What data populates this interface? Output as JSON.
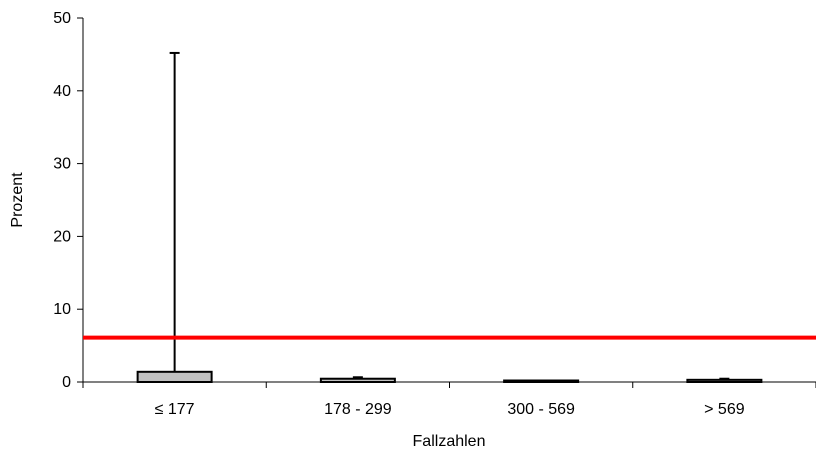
{
  "chart_data": {
    "type": "box",
    "title": "",
    "xlabel": "Fallzahlen",
    "ylabel": "Prozent",
    "categories": [
      "≤ 177",
      "178 - 299",
      "300 - 569",
      "> 569"
    ],
    "ylim": [
      0,
      50
    ],
    "yticks": [
      "0",
      "10",
      "20",
      "30",
      "40",
      "50"
    ],
    "grid": false,
    "boxes": [
      {
        "category": "≤ 177",
        "min": 0,
        "q1": 0,
        "median": 0,
        "q3": 1.4,
        "max": 45.2
      },
      {
        "category": "178 - 299",
        "min": 0,
        "q1": 0,
        "median": 0,
        "q3": 0.45,
        "max": 0.65
      },
      {
        "category": "300 - 569",
        "min": 0,
        "q1": 0,
        "median": 0,
        "q3": 0.05,
        "max": 0.15
      },
      {
        "category": "> 569",
        "min": 0,
        "q1": 0,
        "median": 0,
        "q3": 0.3,
        "max": 0.45
      }
    ],
    "reference_line": {
      "value": 6.1,
      "color": "#ff0000"
    },
    "box_fill": "#c0c0c0"
  }
}
